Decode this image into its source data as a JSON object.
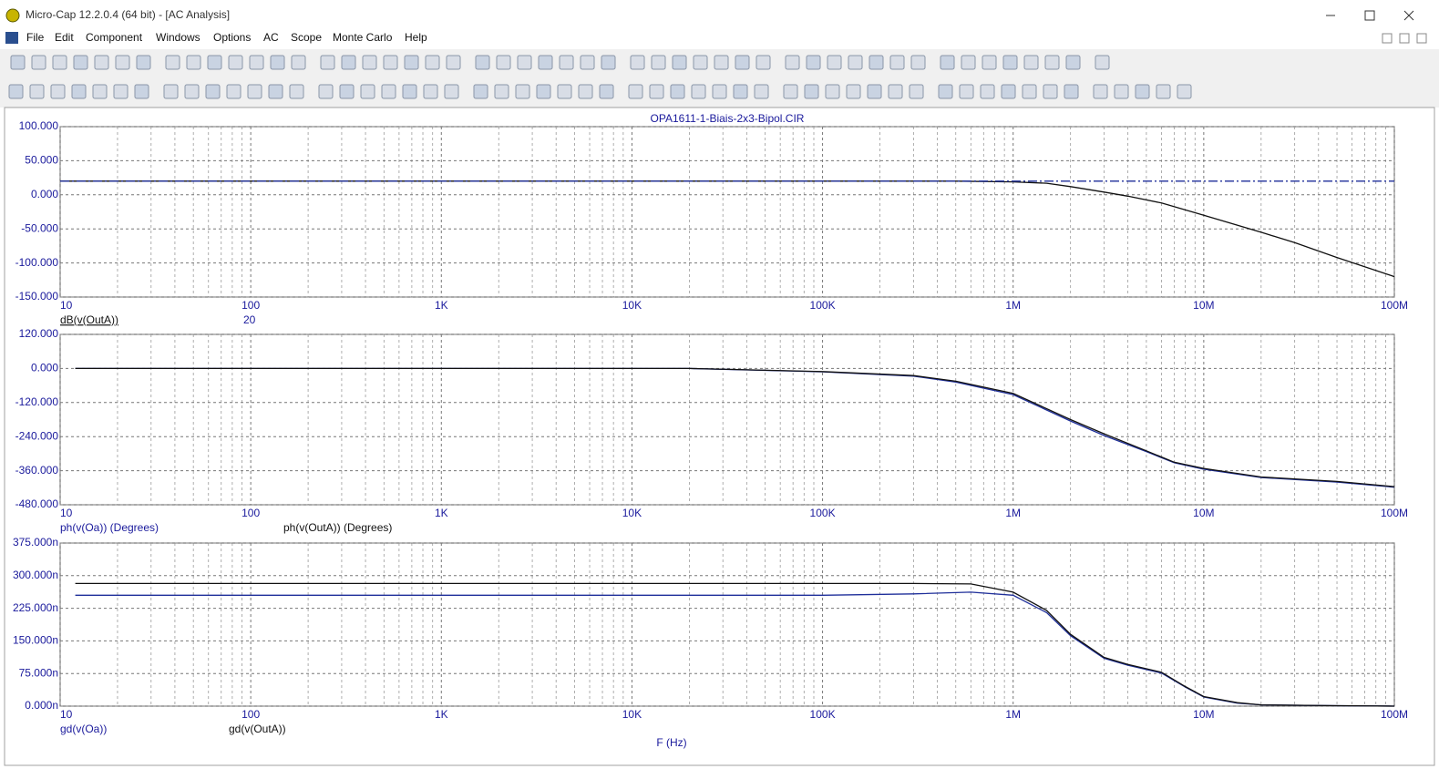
{
  "window": {
    "title": "Micro-Cap 12.2.0.4 (64 bit) - [AC Analysis]",
    "menu": [
      "File",
      "Edit",
      "Component",
      "Windows",
      "Options",
      "AC",
      "Scope",
      "Monte Carlo",
      "Help"
    ]
  },
  "chart_data": [
    {
      "type": "line",
      "title": "OPA1611-1-Biais-2x3-Bipol.CIR",
      "log_x": true,
      "grid": true,
      "minor_grid": true,
      "xlim": [
        10,
        100000000
      ],
      "xticks": [
        10,
        100,
        {
          "value": 1000,
          "label": "1K"
        },
        {
          "value": 10000,
          "label": "10K"
        },
        {
          "value": 100000,
          "label": "100K"
        },
        {
          "value": 1000000,
          "label": "1M"
        },
        {
          "value": 10000000,
          "label": "10M"
        },
        {
          "value": 100000000,
          "label": "100M"
        }
      ],
      "ylim": [
        -150,
        100
      ],
      "yticks": [
        {
          "value": 100,
          "label": "100.000"
        },
        {
          "value": 50,
          "label": "50.000"
        },
        {
          "value": 0,
          "label": "0.000"
        },
        {
          "value": -50,
          "label": "-50.000"
        },
        {
          "value": -100,
          "label": "-100.000"
        },
        {
          "value": -150,
          "label": "-150.000"
        }
      ],
      "annotation": "20",
      "x": [
        10,
        100,
        1000,
        10000,
        100000,
        500000,
        1000000,
        1500000,
        2000000,
        3000000,
        4000000,
        6000000,
        10000000,
        20000000,
        30000000,
        50000000,
        100000000
      ],
      "series": [
        {
          "name": "dB(v(OutA))",
          "color": "#111111",
          "values": [
            20,
            20,
            20,
            20,
            20,
            20,
            19,
            17,
            12,
            4,
            -2,
            -12,
            -30,
            -55,
            -70,
            -92,
            -120
          ]
        },
        {
          "color": "#1f2f9a",
          "style": "dash-dot",
          "values": [
            20,
            20,
            20,
            20,
            20,
            20,
            20,
            20,
            20,
            20,
            20,
            20,
            20,
            20,
            20,
            20,
            20
          ]
        }
      ]
    },
    {
      "type": "line",
      "log_x": true,
      "grid": true,
      "minor_grid": true,
      "xlim": [
        10,
        100000000
      ],
      "xticks": [
        10,
        100,
        {
          "value": 1000,
          "label": "1K"
        },
        {
          "value": 10000,
          "label": "10K"
        },
        {
          "value": 100000,
          "label": "100K"
        },
        {
          "value": 1000000,
          "label": "1M"
        },
        {
          "value": 10000000,
          "label": "10M"
        },
        {
          "value": 100000000,
          "label": "100M"
        }
      ],
      "ylim": [
        -480,
        120
      ],
      "yticks": [
        {
          "value": 120,
          "label": "120.000"
        },
        {
          "value": 0,
          "label": "0.000"
        },
        {
          "value": -120,
          "label": "-120.000"
        },
        {
          "value": -240,
          "label": "-240.000"
        },
        {
          "value": -360,
          "label": "-360.000"
        },
        {
          "value": -480,
          "label": "-480.000"
        }
      ],
      "x": [
        12,
        1000,
        10000,
        20000,
        100000,
        300000,
        500000,
        1000000,
        2000000,
        3000000,
        5000000,
        7000000,
        10000000,
        20000000,
        50000000,
        100000000
      ],
      "series": [
        {
          "name": "ph(v(Oa)) (Degrees)",
          "color": "#1f2f9a",
          "values": [
            0,
            0,
            0,
            0,
            -12,
            -27,
            -48,
            -92,
            -185,
            -236,
            -293,
            -332,
            -355,
            -384,
            -400,
            -418
          ]
        },
        {
          "name": "ph(v(OutA)) (Degrees)",
          "color": "#111111",
          "values": [
            0,
            0,
            0,
            0,
            -11,
            -25,
            -45,
            -88,
            -180,
            -230,
            -290,
            -330,
            -352,
            -382,
            -398,
            -416
          ]
        }
      ]
    },
    {
      "type": "line",
      "log_x": true,
      "grid": true,
      "minor_grid": true,
      "xlabel": "F (Hz)",
      "xlim": [
        10,
        100000000
      ],
      "xticks": [
        10,
        100,
        {
          "value": 1000,
          "label": "1K"
        },
        {
          "value": 10000,
          "label": "10K"
        },
        {
          "value": 100000,
          "label": "100K"
        },
        {
          "value": 1000000,
          "label": "1M"
        },
        {
          "value": 10000000,
          "label": "10M"
        },
        {
          "value": 100000000,
          "label": "100M"
        }
      ],
      "ylim": [
        0,
        375
      ],
      "yticks": [
        {
          "value": 375,
          "label": "375.000n"
        },
        {
          "value": 300,
          "label": "300.000n"
        },
        {
          "value": 225,
          "label": "225.000n"
        },
        {
          "value": 150,
          "label": "150.000n"
        },
        {
          "value": 75,
          "label": "75.000n"
        },
        {
          "value": 0,
          "label": "0.000n"
        }
      ],
      "x": [
        12,
        100000,
        300000,
        600000,
        1000000,
        1500000,
        2000000,
        3000000,
        4000000,
        6000000,
        8000000,
        10000000,
        15000000,
        20000000,
        50000000,
        100000000
      ],
      "series": [
        {
          "name": "gd(v(Oa))",
          "color": "#1f2f9a",
          "values": [
            255,
            255,
            258,
            262,
            255,
            215,
            162,
            110,
            94,
            76,
            44,
            21,
            7,
            3,
            1,
            0
          ]
        },
        {
          "name": "gd(v(OutA))",
          "color": "#111111",
          "values": [
            282,
            282,
            282,
            281,
            262,
            220,
            165,
            112,
            96,
            78,
            45,
            22,
            8,
            3,
            1,
            0
          ]
        }
      ]
    }
  ]
}
